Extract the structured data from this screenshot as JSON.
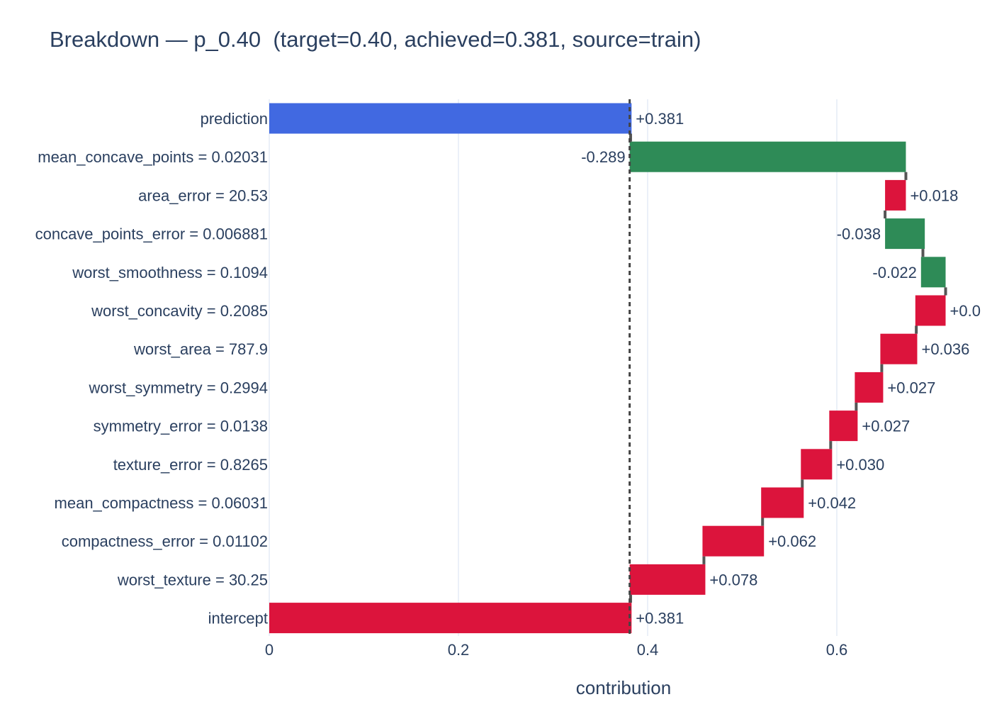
{
  "chart_data": {
    "type": "bar",
    "orientation": "horizontal-waterfall",
    "title": "Breakdown — p_0.40  (target=0.40, achieved=0.381, source=train)",
    "xlabel": "contribution",
    "xlim": [
      0,
      0.71
    ],
    "xticks": [
      0,
      0.2,
      0.4,
      0.6
    ],
    "xtick_labels": [
      "0",
      "0.2",
      "0.4",
      "0.6"
    ],
    "grid": true,
    "reference_line": 0.381,
    "colors": {
      "prediction": "#4169e1",
      "negative": "#2e8b57",
      "positive": "#dc143c",
      "connector": "#555555"
    },
    "bars": [
      {
        "label": "prediction",
        "start": 0,
        "end": 0.383,
        "text": "+0.381",
        "kind": "prediction"
      },
      {
        "label": "mean_concave_points = 0.02031",
        "start": 0.381,
        "end": 0.673,
        "text": "-0.289",
        "kind": "negative"
      },
      {
        "label": "area_error = 20.53",
        "start": 0.651,
        "end": 0.673,
        "text": "+0.018",
        "kind": "positive"
      },
      {
        "label": "concave_points_error = 0.006881",
        "start": 0.651,
        "end": 0.693,
        "text": "-0.038",
        "kind": "negative"
      },
      {
        "label": "worst_smoothness = 0.1094",
        "start": 0.689,
        "end": 0.715,
        "text": "-0.022",
        "kind": "negative"
      },
      {
        "label": "worst_concavity = 0.2085",
        "start": 0.683,
        "end": 0.715,
        "text": "+0.0",
        "kind": "positive"
      },
      {
        "label": "worst_area = 787.9",
        "start": 0.646,
        "end": 0.685,
        "text": "+0.036",
        "kind": "positive"
      },
      {
        "label": "worst_symmetry = 0.2994",
        "start": 0.619,
        "end": 0.649,
        "text": "+0.027",
        "kind": "positive"
      },
      {
        "label": "symmetry_error = 0.0138",
        "start": 0.592,
        "end": 0.622,
        "text": "+0.027",
        "kind": "positive"
      },
      {
        "label": "texture_error = 0.8265",
        "start": 0.562,
        "end": 0.595,
        "text": "+0.030",
        "kind": "positive"
      },
      {
        "label": "mean_compactness = 0.06031",
        "start": 0.52,
        "end": 0.565,
        "text": "+0.042",
        "kind": "positive"
      },
      {
        "label": "compactness_error = 0.01102",
        "start": 0.458,
        "end": 0.523,
        "text": "+0.062",
        "kind": "positive"
      },
      {
        "label": "worst_texture = 30.25",
        "start": 0.381,
        "end": 0.461,
        "text": "+0.078",
        "kind": "positive"
      },
      {
        "label": "intercept",
        "start": 0,
        "end": 0.383,
        "text": "+0.381",
        "kind": "positive"
      }
    ]
  }
}
